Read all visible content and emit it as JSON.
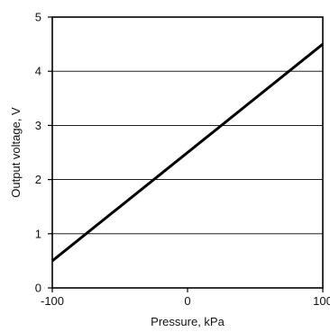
{
  "chart_data": {
    "type": "line",
    "title": "",
    "xlabel": "Pressure, kPa",
    "ylabel": "Output voltage, V",
    "xlim": [
      -100,
      100
    ],
    "ylim": [
      0,
      5
    ],
    "x_ticks": [
      -100,
      0,
      100
    ],
    "y_ticks": [
      0,
      1,
      2,
      3,
      4,
      5
    ],
    "x_tick_labels": [
      "-100",
      "0",
      "100"
    ],
    "y_tick_labels": [
      "0",
      "1",
      "2",
      "3",
      "4",
      "5"
    ],
    "grid": "horizontal",
    "series": [
      {
        "x": [
          -100,
          100
        ],
        "y": [
          0.5,
          4.5
        ]
      }
    ]
  }
}
